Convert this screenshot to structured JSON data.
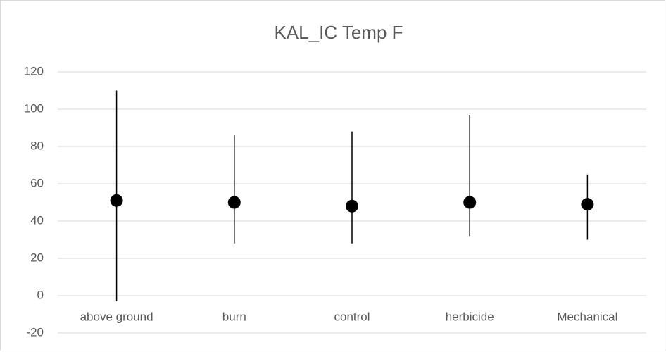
{
  "chart_data": {
    "type": "dot_range",
    "title": "KAL_IC Temp F",
    "categories": [
      "above ground",
      "burn",
      "control",
      "herbicide",
      "Mechanical"
    ],
    "values": [
      51,
      50,
      48,
      50,
      49
    ],
    "lows": [
      -3,
      28,
      28,
      32,
      30
    ],
    "highs": [
      110,
      86,
      88,
      97,
      65
    ],
    "color": "#000000",
    "ylim": [
      -20,
      120
    ],
    "yticks": [
      -20,
      0,
      20,
      40,
      60,
      80,
      100,
      120
    ],
    "grid": true
  }
}
